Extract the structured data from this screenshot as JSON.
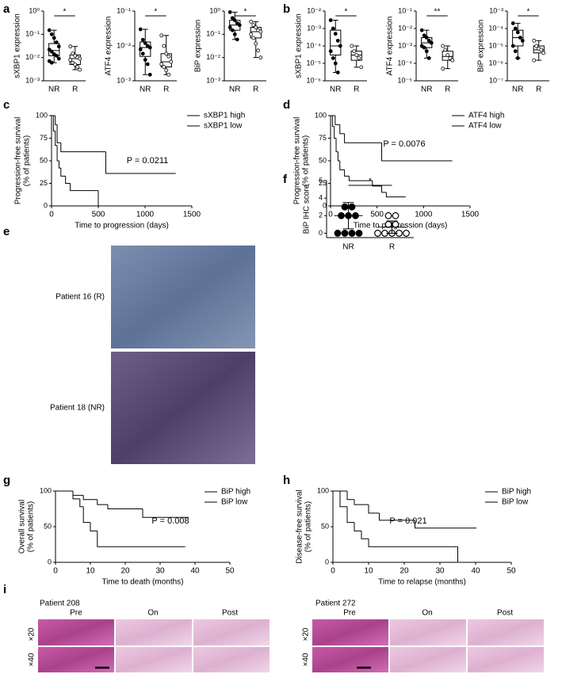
{
  "panel_labels": [
    "a",
    "b",
    "c",
    "d",
    "e",
    "f",
    "g",
    "h",
    "i"
  ],
  "chart_data": [
    {
      "type": "box",
      "ylabel": "sXBP1 expression",
      "categories": [
        "NR",
        "R"
      ],
      "log_scale": true,
      "ylim": [
        0.001,
        1
      ],
      "yticks": [
        {
          "value": 0.001,
          "label": "10⁻³"
        },
        {
          "value": 0.01,
          "label": "10⁻²"
        },
        {
          "value": 0.1,
          "label": "10⁻¹"
        },
        {
          "value": 1,
          "label": "10⁰"
        }
      ],
      "significance": "*",
      "boxes": [
        {
          "min": 0.006,
          "q1": 0.012,
          "median": 0.02,
          "q3": 0.04,
          "max": 0.15,
          "points": [
            0.15,
            0.1,
            0.07,
            0.045,
            0.03,
            0.022,
            0.018,
            0.014,
            0.012,
            0.009,
            0.007,
            0.006
          ]
        },
        {
          "min": 0.003,
          "q1": 0.005,
          "median": 0.009,
          "q3": 0.013,
          "max": 0.03,
          "points": [
            0.03,
            0.015,
            0.012,
            0.01,
            0.009,
            0.008,
            0.006,
            0.005,
            0.004,
            0.003
          ]
        }
      ]
    },
    {
      "type": "box",
      "ylabel": "ATF4 expression",
      "categories": [
        "NR",
        "R"
      ],
      "log_scale": true,
      "ylim": [
        0.001,
        0.1
      ],
      "yticks": [
        {
          "value": 0.001,
          "label": "10⁻³"
        },
        {
          "value": 0.01,
          "label": "10⁻²"
        },
        {
          "value": 0.1,
          "label": "10⁻¹"
        }
      ],
      "significance": "*",
      "boxes": [
        {
          "min": 0.0015,
          "q1": 0.005,
          "median": 0.009,
          "q3": 0.013,
          "max": 0.03,
          "points": [
            0.03,
            0.015,
            0.012,
            0.01,
            0.009,
            0.008,
            0.006,
            0.004,
            0.003,
            0.0015
          ]
        },
        {
          "min": 0.0015,
          "q1": 0.0025,
          "median": 0.0035,
          "q3": 0.006,
          "max": 0.02,
          "points": [
            0.02,
            0.01,
            0.006,
            0.005,
            0.0035,
            0.003,
            0.0025,
            0.002,
            0.0015
          ]
        }
      ]
    },
    {
      "type": "box",
      "ylabel": "BiP expression",
      "categories": [
        "NR",
        "R"
      ],
      "log_scale": true,
      "ylim": [
        0.001,
        1
      ],
      "yticks": [
        {
          "value": 0.001,
          "label": "10⁻³"
        },
        {
          "value": 0.01,
          "label": "10⁻²"
        },
        {
          "value": 0.1,
          "label": "10⁻¹"
        },
        {
          "value": 1,
          "label": "10⁰"
        }
      ],
      "significance": "*",
      "boxes": [
        {
          "min": 0.06,
          "q1": 0.15,
          "median": 0.25,
          "q3": 0.4,
          "max": 0.9,
          "points": [
            0.9,
            0.5,
            0.4,
            0.3,
            0.25,
            0.2,
            0.15,
            0.1,
            0.06
          ]
        },
        {
          "min": 0.01,
          "q1": 0.07,
          "median": 0.13,
          "q3": 0.2,
          "max": 0.35,
          "points": [
            0.35,
            0.25,
            0.2,
            0.15,
            0.13,
            0.1,
            0.07,
            0.04,
            0.02,
            0.01
          ]
        }
      ]
    },
    {
      "type": "box",
      "ylabel": "sXBP1 expression",
      "categories": [
        "NR",
        "R"
      ],
      "log_scale": true,
      "ylim": [
        1e-06,
        0.01
      ],
      "yticks": [
        {
          "value": 1e-06,
          "label": "10⁻⁶"
        },
        {
          "value": 1e-05,
          "label": "10⁻⁵"
        },
        {
          "value": 0.0001,
          "label": "10⁻⁴"
        },
        {
          "value": 0.001,
          "label": "10⁻³"
        },
        {
          "value": 0.01,
          "label": "10⁻²"
        }
      ],
      "significance": "*",
      "boxes": [
        {
          "min": 3e-06,
          "q1": 3e-05,
          "median": 0.0001,
          "q3": 0.0008,
          "max": 0.003,
          "points": [
            0.003,
            0.001,
            0.0005,
            0.0002,
            0.0001,
            5e-05,
            2e-05,
            1e-05,
            3e-06
          ]
        },
        {
          "min": 6e-06,
          "q1": 1.5e-05,
          "median": 3e-05,
          "q3": 5e-05,
          "max": 0.0001,
          "points": [
            0.0001,
            5e-05,
            3e-05,
            2e-05,
            6e-06
          ]
        }
      ]
    },
    {
      "type": "box",
      "ylabel": "ATF4 expression",
      "categories": [
        "NR",
        "R"
      ],
      "log_scale": true,
      "ylim": [
        1e-05,
        0.1
      ],
      "yticks": [
        {
          "value": 1e-05,
          "label": "10⁻⁵"
        },
        {
          "value": 0.0001,
          "label": "10⁻⁴"
        },
        {
          "value": 0.001,
          "label": "10⁻³"
        },
        {
          "value": 0.01,
          "label": "10⁻²"
        },
        {
          "value": 0.1,
          "label": "10⁻¹"
        }
      ],
      "significance": "**",
      "boxes": [
        {
          "min": 0.0002,
          "q1": 0.0008,
          "median": 0.0015,
          "q3": 0.003,
          "max": 0.008,
          "points": [
            0.008,
            0.004,
            0.003,
            0.002,
            0.0015,
            0.001,
            0.0008,
            0.0005,
            0.0002
          ]
        },
        {
          "min": 5e-05,
          "q1": 0.00015,
          "median": 0.00025,
          "q3": 0.0005,
          "max": 0.001,
          "points": [
            0.001,
            0.0006,
            0.0003,
            0.0002,
            0.00015,
            5e-05
          ]
        }
      ]
    },
    {
      "type": "box",
      "ylabel": "BiP expression",
      "categories": [
        "NR",
        "R"
      ],
      "log_scale": true,
      "ylim": [
        1e-07,
        0.001
      ],
      "yticks": [
        {
          "value": 1e-07,
          "label": "10⁻⁷"
        },
        {
          "value": 1e-06,
          "label": "10⁻⁶"
        },
        {
          "value": 1e-05,
          "label": "10⁻⁵"
        },
        {
          "value": 0.0001,
          "label": "10⁻⁴"
        },
        {
          "value": 0.001,
          "label": "10⁻³"
        }
      ],
      "significance": "*",
      "boxes": [
        {
          "min": 2e-06,
          "q1": 1e-05,
          "median": 3e-05,
          "q3": 8e-05,
          "max": 0.0002,
          "points": [
            0.0002,
            0.0001,
            6e-05,
            3e-05,
            2e-05,
            1e-05,
            5e-06,
            2e-06
          ]
        },
        {
          "min": 1.5e-06,
          "q1": 4e-06,
          "median": 6e-06,
          "q3": 1e-05,
          "max": 2e-05,
          "points": [
            2e-05,
            1e-05,
            7e-06,
            6e-06,
            4e-06,
            1.5e-06
          ]
        }
      ]
    },
    {
      "type": "survival",
      "xlabel": "Time to progression (days)",
      "ylabel": [
        "Progression-free survival",
        "(% of patients)"
      ],
      "xlim": [
        0,
        1500
      ],
      "xticks": [
        0,
        500,
        1000,
        1500
      ],
      "ylim": [
        0,
        100
      ],
      "yticks": [
        0,
        25,
        50,
        75,
        100
      ],
      "annotation": "P = 0.0211",
      "legend": "upper right",
      "series": [
        {
          "name": "sXBP1 high",
          "color": "#000000",
          "x": [
            0,
            20,
            40,
            60,
            80,
            100,
            150,
            200,
            500
          ],
          "values": [
            100,
            83,
            67,
            50,
            42,
            33,
            25,
            17,
            0
          ]
        },
        {
          "name": "sXBP1 low",
          "color": "#e0372b",
          "x": [
            0,
            40,
            60,
            100,
            580,
            1320
          ],
          "values": [
            100,
            90,
            70,
            60,
            36,
            36
          ]
        }
      ]
    },
    {
      "type": "survival",
      "xlabel": "Time to progression (days)",
      "ylabel": [
        "Progression-free survival",
        "(% of patients)"
      ],
      "xlim": [
        0,
        1500
      ],
      "xticks": [
        0,
        500,
        1000,
        1500
      ],
      "ylim": [
        0,
        100
      ],
      "yticks": [
        0,
        25,
        50,
        75,
        100
      ],
      "annotation": "P = 0.0076",
      "legend": "upper right",
      "series": [
        {
          "name": "ATF4 high",
          "color": "#000000",
          "x": [
            0,
            20,
            40,
            60,
            80,
            100,
            150,
            200,
            450,
            550,
            600,
            800
          ],
          "values": [
            100,
            88,
            75,
            60,
            50,
            40,
            33,
            28,
            22,
            15,
            10,
            10
          ]
        },
        {
          "name": "ATF4 low",
          "color": "#e0372b",
          "x": [
            0,
            50,
            100,
            150,
            550,
            1300
          ],
          "values": [
            100,
            90,
            80,
            70,
            50,
            50
          ]
        }
      ]
    },
    {
      "type": "dot",
      "ylabel": "BiP IHC score",
      "categories": [
        "NR",
        "R"
      ],
      "ylim": [
        -0.5,
        6
      ],
      "yticks": [
        0,
        2,
        4,
        6
      ],
      "significance": "*",
      "groups": [
        {
          "points": [
            3,
            3,
            2,
            2,
            2,
            0,
            0,
            0,
            0
          ],
          "mean": 2,
          "sd": 1.5
        },
        {
          "points": [
            2,
            2,
            1,
            1,
            0,
            0,
            0,
            0,
            0
          ],
          "mean": 0.7,
          "sd": 0.7
        }
      ]
    },
    {
      "type": "survival",
      "xlabel": "Time to death (months)",
      "ylabel": [
        "Overall survival",
        "(% of patients)"
      ],
      "xlim": [
        0,
        50
      ],
      "xticks": [
        0,
        10,
        20,
        30,
        40,
        50
      ],
      "ylim": [
        0,
        100
      ],
      "yticks": [
        0,
        50,
        100
      ],
      "annotation": "P = 0.008",
      "legend": "upper right",
      "series": [
        {
          "name": "BiP high",
          "color": "#000000",
          "x": [
            0,
            5,
            7,
            8,
            10,
            12,
            37
          ],
          "values": [
            100,
            89,
            78,
            56,
            44,
            22,
            22
          ]
        },
        {
          "name": "BiP low",
          "color": "#e0372b",
          "x": [
            0,
            5,
            8,
            12,
            15,
            25,
            38
          ],
          "values": [
            100,
            94,
            88,
            81,
            75,
            63,
            63
          ]
        }
      ]
    },
    {
      "type": "survival",
      "xlabel": "Time to relapse (months)",
      "ylabel": [
        "Disease-free survival",
        "(% of patients)"
      ],
      "xlim": [
        0,
        50
      ],
      "xticks": [
        0,
        10,
        20,
        30,
        40,
        50
      ],
      "ylim": [
        0,
        100
      ],
      "yticks": [
        0,
        50,
        100
      ],
      "annotation": "P = 0.021",
      "legend": "upper right",
      "series": [
        {
          "name": "BiP high",
          "color": "#000000",
          "x": [
            0,
            2,
            4,
            6,
            8,
            10,
            35
          ],
          "values": [
            100,
            78,
            56,
            44,
            33,
            22,
            0
          ]
        },
        {
          "name": "BiP low",
          "color": "#e0372b",
          "x": [
            0,
            4,
            6,
            10,
            13,
            23,
            40
          ],
          "values": [
            100,
            88,
            81,
            69,
            59,
            48,
            48
          ]
        }
      ]
    }
  ],
  "image_panels": {
    "e": {
      "captions": [
        "Patient 16 (R)",
        "Patient 18 (NR)"
      ]
    },
    "i": {
      "patients": [
        "Patient 208",
        "Patient 272"
      ],
      "columns": [
        "Pre",
        "On",
        "Post"
      ],
      "rows": [
        "×20",
        "×40"
      ]
    }
  }
}
